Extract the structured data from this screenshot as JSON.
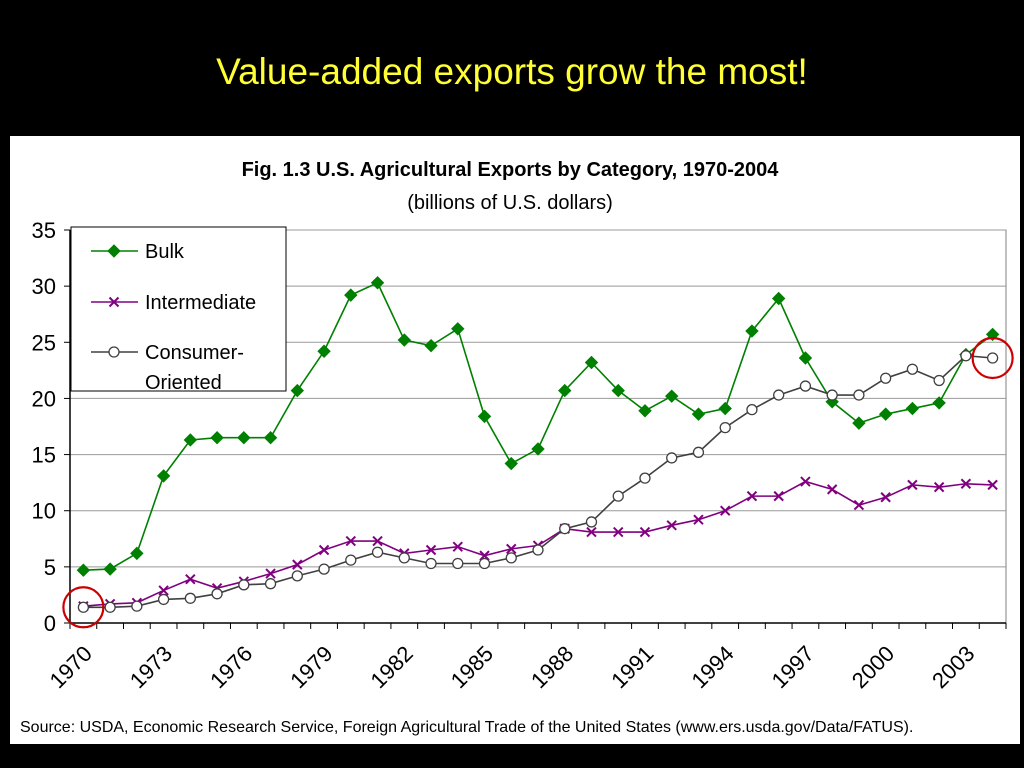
{
  "slide_title": "Value-added exports grow the most!",
  "chart_data": {
    "type": "line",
    "title": "Fig. 1.3  U.S. Agricultural Exports by Category, 1970-2004",
    "subtitle": "(billions of U.S. dollars)",
    "x": [
      1970,
      1971,
      1972,
      1973,
      1974,
      1975,
      1976,
      1977,
      1978,
      1979,
      1980,
      1981,
      1982,
      1983,
      1984,
      1985,
      1986,
      1987,
      1988,
      1989,
      1990,
      1991,
      1992,
      1993,
      1994,
      1995,
      1996,
      1997,
      1998,
      1999,
      2000,
      2001,
      2002,
      2003,
      2004
    ],
    "x_tick_labels": [
      "1970",
      "1973",
      "1976",
      "1979",
      "1982",
      "1985",
      "1988",
      "1991",
      "1994",
      "1997",
      "2000",
      "2003"
    ],
    "ylim": [
      0,
      35
    ],
    "y_ticks": [
      0,
      5,
      10,
      15,
      20,
      25,
      30,
      35
    ],
    "grid": true,
    "legend_position": "top-left",
    "series": [
      {
        "name": "Bulk",
        "color": "#008000",
        "marker": "diamond",
        "values": [
          4.7,
          4.8,
          6.2,
          13.1,
          16.3,
          16.5,
          16.5,
          16.5,
          20.7,
          24.2,
          29.2,
          30.3,
          25.2,
          24.7,
          26.2,
          18.4,
          14.2,
          15.5,
          20.7,
          23.2,
          20.7,
          18.9,
          20.2,
          18.6,
          19.1,
          26.0,
          28.9,
          23.6,
          19.7,
          17.8,
          18.6,
          19.1,
          19.6,
          23.9,
          25.7
        ]
      },
      {
        "name": "Intermediate",
        "color": "#800080",
        "marker": "x",
        "values": [
          1.5,
          1.7,
          1.8,
          2.9,
          3.9,
          3.1,
          3.7,
          4.4,
          5.2,
          6.5,
          7.3,
          7.3,
          6.2,
          6.5,
          6.8,
          6.0,
          6.6,
          6.9,
          8.4,
          8.1,
          8.1,
          8.1,
          8.7,
          9.2,
          10.0,
          11.3,
          11.3,
          12.6,
          11.9,
          10.5,
          11.2,
          12.3,
          12.1,
          12.4,
          12.3
        ]
      },
      {
        "name": "Consumer-Oriented",
        "name_lines": [
          "Consumer-",
          "Oriented"
        ],
        "color": "#404040",
        "marker": "circle",
        "values": [
          1.4,
          1.4,
          1.5,
          2.1,
          2.2,
          2.6,
          3.4,
          3.5,
          4.2,
          4.8,
          5.6,
          6.3,
          5.8,
          5.3,
          5.3,
          5.3,
          5.8,
          6.5,
          8.4,
          9.0,
          11.3,
          12.9,
          14.7,
          15.2,
          17.4,
          19.0,
          20.3,
          21.1,
          20.3,
          20.3,
          21.8,
          22.6,
          21.6,
          23.8,
          23.6
        ]
      }
    ],
    "annotations": [
      {
        "type": "circle-highlight",
        "year": 1970,
        "value": 1.4,
        "color": "#cc0000"
      },
      {
        "type": "circle-highlight",
        "year": 2004,
        "value": 23.6,
        "color": "#cc0000"
      }
    ]
  },
  "source": "Source: USDA, Economic Research Service, Foreign Agricultural Trade of the United States (www.ers.usda.gov/Data/FATUS)."
}
